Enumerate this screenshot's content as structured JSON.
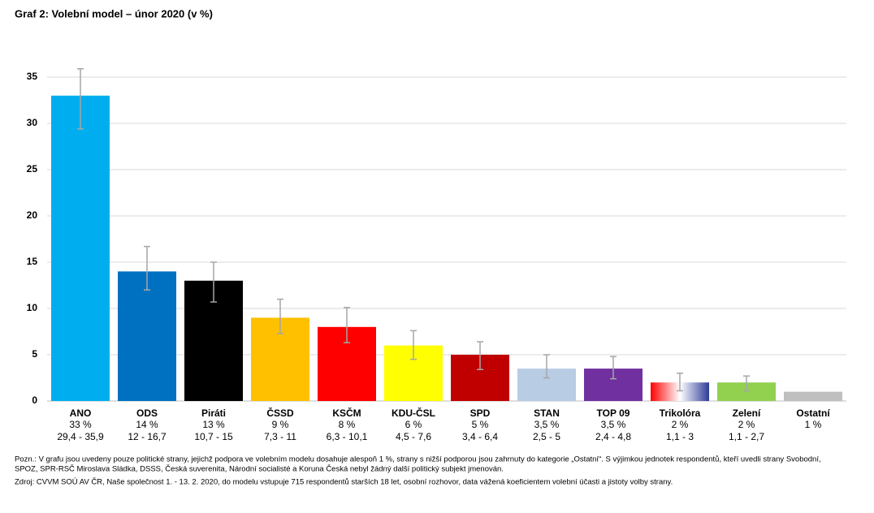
{
  "chart_data": {
    "type": "bar",
    "title": "Graf 2: Volební model – únor 2020 (v %)",
    "categories": [
      "ANO",
      "ODS",
      "Piráti",
      "ČSSD",
      "KSČM",
      "KDU-ČSL",
      "SPD",
      "STAN",
      "TOP 09",
      "Trikolóra",
      "Zelení",
      "Ostatní"
    ],
    "values": [
      33,
      14,
      13,
      9,
      8,
      6,
      5,
      3.5,
      3.5,
      2,
      2,
      1
    ],
    "value_labels": [
      "33 %",
      "14 %",
      "13 %",
      "9 %",
      "8 %",
      "6 %",
      "5 %",
      "3,5 %",
      "3,5 %",
      "2 %",
      "2 %",
      "1 %"
    ],
    "error_low": [
      29.4,
      12,
      10.7,
      7.3,
      6.3,
      4.5,
      3.4,
      2.5,
      2.4,
      1.1,
      1.1,
      null
    ],
    "error_high": [
      35.9,
      16.7,
      15,
      11,
      10.1,
      7.6,
      6.4,
      5,
      4.8,
      3,
      2.7,
      null
    ],
    "interval_labels": [
      "29,4 - 35,9",
      "12 - 16,7",
      "10,7 - 15",
      "7,3 - 11",
      "6,3 - 10,1",
      "4,5 - 7,6",
      "3,4 - 6,4",
      "2,5 - 5",
      "2,4 - 4,8",
      "1,1 - 3",
      "1,1 - 2,7",
      null
    ],
    "colors": [
      "#00aeef",
      "#0070c0",
      "#000000",
      "#ffc000",
      "#ff0000",
      "#ffff00",
      "#c00000",
      "#b8cce4",
      "#7030a0",
      [
        "#ff0000",
        "#ffffff",
        "#2e3d98"
      ],
      "#92d050",
      "#bfbfbf"
    ],
    "error_color": "#a6a6a6",
    "ylim": [
      0,
      35
    ],
    "yticks": [
      0,
      5,
      10,
      15,
      20,
      25,
      30,
      35
    ],
    "grid": true,
    "notes": [
      "Pozn.: V grafu jsou uvedeny pouze politické strany, jejichž podpora ve volebním modelu dosahuje alespoň 1 %, strany s nižší podporou jsou zahrnuty do kategorie „Ostatní“. S výjimkou jednotek respondentů, kteří uvedli strany Svobodní,",
      "SPOZ, SPR-RSČ Miroslava Sládka, DSSS, Česká suverenita, Národní socialisté a Koruna Česká nebyl žádný další politický subjekt jmenován.",
      "Zdroj: CVVM SOÚ AV ČR, Naše společnost 1. - 13. 2. 2020, do modelu vstupuje 715 respondentů starších 18 let, osobní rozhovor, data vážená koeficientem volební účasti a jistoty volby strany."
    ]
  }
}
